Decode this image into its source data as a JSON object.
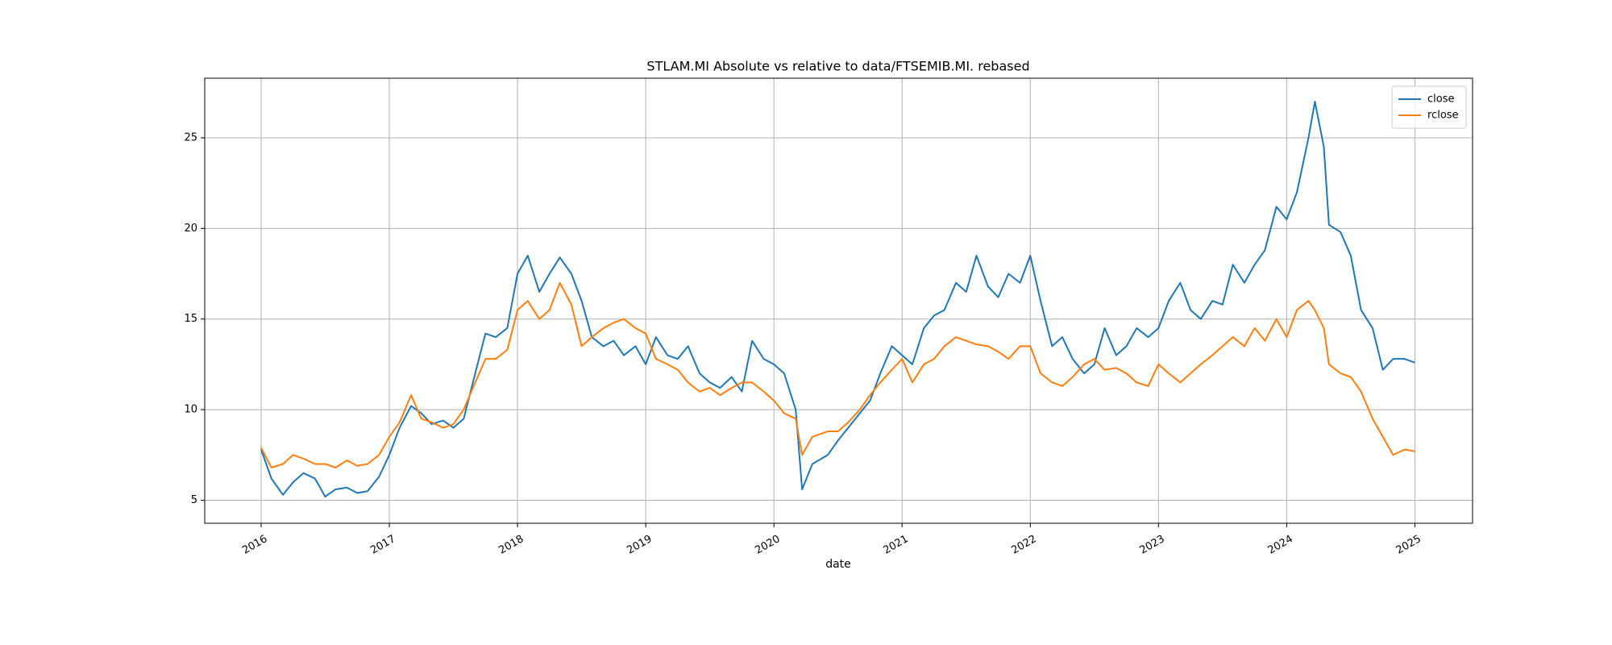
{
  "chart_data": {
    "type": "line",
    "title": "STLAM.MI Absolute vs relative to data/FTSEMIB.MI. rebased",
    "xlabel": "date",
    "xlim": [
      2015.56,
      2025.45
    ],
    "xticks": [
      2016,
      2017,
      2018,
      2019,
      2020,
      2021,
      2022,
      2023,
      2024,
      2025
    ],
    "ylim": [
      3.73,
      28.29
    ],
    "yticks": [
      5,
      10,
      15,
      20,
      25
    ],
    "grid": true,
    "legend": "upper right",
    "x": [
      2016.0,
      2016.08,
      2016.17,
      2016.25,
      2016.33,
      2016.42,
      2016.5,
      2016.58,
      2016.67,
      2016.75,
      2016.83,
      2016.92,
      2017.0,
      2017.08,
      2017.17,
      2017.25,
      2017.33,
      2017.42,
      2017.5,
      2017.58,
      2017.67,
      2017.75,
      2017.83,
      2017.92,
      2018.0,
      2018.08,
      2018.17,
      2018.25,
      2018.33,
      2018.42,
      2018.5,
      2018.58,
      2018.67,
      2018.75,
      2018.83,
      2018.92,
      2019.0,
      2019.08,
      2019.17,
      2019.25,
      2019.33,
      2019.42,
      2019.5,
      2019.58,
      2019.67,
      2019.75,
      2019.83,
      2019.92,
      2020.0,
      2020.08,
      2020.17,
      2020.22,
      2020.3,
      2020.42,
      2020.5,
      2020.58,
      2020.67,
      2020.75,
      2020.83,
      2020.92,
      2021.0,
      2021.08,
      2021.17,
      2021.25,
      2021.33,
      2021.42,
      2021.5,
      2021.58,
      2021.67,
      2021.75,
      2021.83,
      2021.92,
      2022.0,
      2022.08,
      2022.17,
      2022.25,
      2022.33,
      2022.42,
      2022.5,
      2022.58,
      2022.67,
      2022.75,
      2022.83,
      2022.92,
      2023.0,
      2023.08,
      2023.17,
      2023.25,
      2023.33,
      2023.42,
      2023.5,
      2023.58,
      2023.67,
      2023.75,
      2023.83,
      2023.92,
      2024.0,
      2024.08,
      2024.17,
      2024.22,
      2024.29,
      2024.33,
      2024.42,
      2024.5,
      2024.58,
      2024.67,
      2024.75,
      2024.83,
      2024.92,
      2025.0
    ],
    "series": [
      {
        "name": "close",
        "color": "#1f77b4",
        "values": [
          7.8,
          6.2,
          5.3,
          6.0,
          6.5,
          6.2,
          5.2,
          5.6,
          5.7,
          5.4,
          5.5,
          6.3,
          7.5,
          9.0,
          10.2,
          9.8,
          9.2,
          9.4,
          9.0,
          9.5,
          12.0,
          14.2,
          14.0,
          14.5,
          17.5,
          18.5,
          16.5,
          17.5,
          18.4,
          17.5,
          16.0,
          14.0,
          13.5,
          13.8,
          13.0,
          13.5,
          12.5,
          14.0,
          13.0,
          12.8,
          13.5,
          12.0,
          11.5,
          11.2,
          11.8,
          11.0,
          13.8,
          12.8,
          12.5,
          12.0,
          10.0,
          5.6,
          7.0,
          7.5,
          8.3,
          9.0,
          9.8,
          10.5,
          12.0,
          13.5,
          13.0,
          12.5,
          14.5,
          15.2,
          15.5,
          17.0,
          16.5,
          18.5,
          16.8,
          16.2,
          17.5,
          17.0,
          18.5,
          16.0,
          13.5,
          14.0,
          12.8,
          12.0,
          12.5,
          14.5,
          13.0,
          13.5,
          14.5,
          14.0,
          14.5,
          16.0,
          17.0,
          15.5,
          15.0,
          16.0,
          15.8,
          18.0,
          17.0,
          18.0,
          18.8,
          21.2,
          20.5,
          22.0,
          25.0,
          27.0,
          24.5,
          20.2,
          19.8,
          18.5,
          15.5,
          14.5,
          12.2,
          12.8,
          12.8,
          12.6
        ]
      },
      {
        "name": "rclose",
        "color": "#ff7f0e",
        "values": [
          7.9,
          6.8,
          7.0,
          7.5,
          7.3,
          7.0,
          7.0,
          6.8,
          7.2,
          6.9,
          7.0,
          7.5,
          8.5,
          9.3,
          10.8,
          9.5,
          9.3,
          9.0,
          9.2,
          10.0,
          11.5,
          12.8,
          12.8,
          13.3,
          15.5,
          16.0,
          15.0,
          15.5,
          17.0,
          15.8,
          13.5,
          14.0,
          14.5,
          14.8,
          15.0,
          14.5,
          14.2,
          12.8,
          12.5,
          12.2,
          11.5,
          11.0,
          11.2,
          10.8,
          11.2,
          11.5,
          11.5,
          11.0,
          10.5,
          9.8,
          9.5,
          7.5,
          8.5,
          8.8,
          8.8,
          9.3,
          10.0,
          10.8,
          11.5,
          12.2,
          12.8,
          11.5,
          12.5,
          12.8,
          13.5,
          14.0,
          13.8,
          13.6,
          13.5,
          13.2,
          12.8,
          13.5,
          13.5,
          12.0,
          11.5,
          11.3,
          11.8,
          12.5,
          12.8,
          12.2,
          12.3,
          12.0,
          11.5,
          11.3,
          12.5,
          12.0,
          11.5,
          12.0,
          12.5,
          13.0,
          13.5,
          14.0,
          13.5,
          14.5,
          13.8,
          15.0,
          14.0,
          15.5,
          16.0,
          15.5,
          14.5,
          12.5,
          12.0,
          11.8,
          11.0,
          9.5,
          8.5,
          7.5,
          7.8,
          7.7
        ]
      }
    ]
  }
}
